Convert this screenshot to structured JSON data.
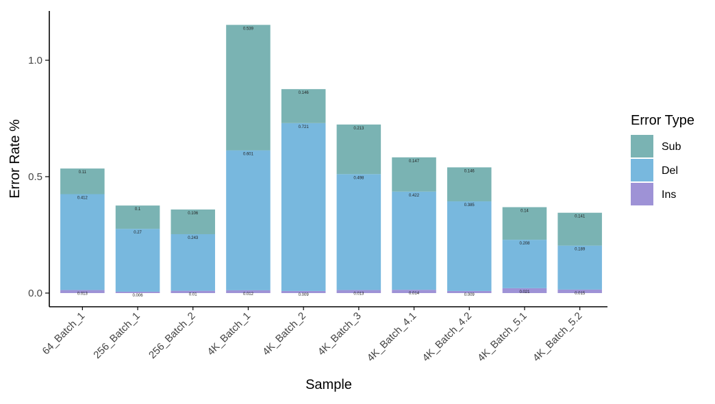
{
  "chart_data": {
    "type": "bar",
    "stacked": true,
    "xlabel": "Sample",
    "ylabel": "Error Rate %",
    "ylim": [
      -0.04,
      1.22
    ],
    "yticks": [
      0.0,
      0.5,
      1.0
    ],
    "ytick_labels": [
      "0.0",
      "0.5",
      "1.0"
    ],
    "grid": false,
    "categories": [
      "64_Batch_1",
      "256_Batch_1",
      "256_Batch_2",
      "4K_Batch_1",
      "4K_Batch_2",
      "4K_Batch_3",
      "4K_Batch_4.1",
      "4K_Batch_4.2",
      "4K_Batch_5.1",
      "4K_Batch_5.2"
    ],
    "series": [
      {
        "name": "Ins",
        "color": "#9E92D6",
        "values": [
          0.013,
          0.006,
          0.01,
          0.012,
          0.009,
          0.013,
          0.014,
          0.009,
          0.021,
          0.015
        ],
        "labels": [
          "0.013",
          "0.006",
          "0.01",
          "0.012",
          "0.009",
          "0.013",
          "0.014",
          "0.009",
          "0.021",
          "0.015"
        ]
      },
      {
        "name": "Del",
        "color": "#78B8DE",
        "values": [
          0.412,
          0.27,
          0.243,
          0.601,
          0.721,
          0.498,
          0.422,
          0.385,
          0.208,
          0.189
        ],
        "labels": [
          "0.412",
          "0.27",
          "0.243",
          "0.601",
          "0.721",
          "0.498",
          "0.422",
          "0.385",
          "0.208",
          "0.189"
        ]
      },
      {
        "name": "Sub",
        "color": "#7AB3B3",
        "values": [
          0.11,
          0.1,
          0.106,
          0.539,
          0.146,
          0.213,
          0.147,
          0.146,
          0.14,
          0.141
        ],
        "labels": [
          "0.11",
          "0.1",
          "0.106",
          "0.539",
          "0.146",
          "0.213",
          "0.147",
          "0.146",
          "0.14",
          "0.141"
        ]
      }
    ],
    "legend": {
      "title": "Error Type",
      "placement": "right",
      "order": [
        "Sub",
        "Del",
        "Ins"
      ]
    }
  }
}
